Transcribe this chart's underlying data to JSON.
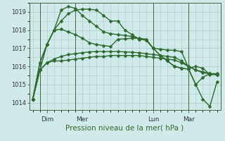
{
  "background_color": "#d0eaea",
  "grid_color": "#aacccc",
  "line_color": "#2d6a2d",
  "marker": "D",
  "markersize": 2.5,
  "linewidth": 1.0,
  "title": "Pression niveau de la mer( hPa )",
  "title_fontsize": 7.5,
  "title_color": "#2d6a2d",
  "ylim": [
    1013.6,
    1019.5
  ],
  "yticks": [
    1014,
    1015,
    1016,
    1017,
    1018,
    1019
  ],
  "ytick_fontsize": 6.0,
  "xtick_fontsize": 6.5,
  "day_labels": [
    "Dim",
    "Mer",
    "Lun",
    "Mar"
  ],
  "day_positions": [
    2,
    7,
    17,
    22
  ],
  "vline_positions": [
    1,
    6,
    17,
    22
  ],
  "x_max": 27,
  "series": [
    [
      1014.2,
      1015.8,
      1016.2,
      1016.3,
      1016.3,
      1016.35,
      1016.4,
      1016.45,
      1016.5,
      1016.55,
      1016.55,
      1016.6,
      1016.6,
      1016.6,
      1016.6,
      1016.6,
      1016.55,
      1016.5,
      1016.45,
      1016.4,
      1016.35,
      1016.2,
      1016.0,
      1015.8,
      1015.7,
      1015.6,
      1015.55
    ],
    [
      1014.2,
      1015.8,
      1016.2,
      1016.4,
      1016.55,
      1016.65,
      1016.7,
      1016.75,
      1016.8,
      1016.82,
      1016.82,
      1016.82,
      1016.82,
      1016.8,
      1016.78,
      1016.75,
      1016.7,
      1016.65,
      1016.6,
      1016.55,
      1016.5,
      1016.3,
      1016.0,
      1015.8,
      1015.65,
      1015.6,
      1015.55
    ],
    [
      1014.2,
      1015.8,
      1017.2,
      1018.0,
      1018.05,
      1017.9,
      1017.75,
      1017.55,
      1017.3,
      1017.2,
      1017.15,
      1017.1,
      1017.5,
      1017.52,
      1017.55,
      1017.55,
      1017.5,
      1017.0,
      1016.95,
      1016.9,
      1016.88,
      1016.82,
      1015.9,
      1016.0,
      1015.9,
      1015.55,
      1015.55
    ],
    [
      1014.2,
      1016.2,
      1017.2,
      1018.0,
      1018.5,
      1018.9,
      1019.1,
      1019.15,
      1019.15,
      1019.1,
      1018.8,
      1018.5,
      1018.5,
      1018.0,
      1017.75,
      1017.5,
      1017.45,
      1017.0,
      1016.6,
      1016.3,
      1016.0,
      1015.9,
      1015.85,
      1015.0,
      1014.2,
      1013.8,
      1015.15
    ],
    [
      1014.2,
      1016.2,
      1017.2,
      1018.0,
      1019.1,
      1019.3,
      1019.2,
      1018.8,
      1018.5,
      1018.2,
      1017.9,
      1017.8,
      1017.75,
      1017.7,
      1017.65,
      1017.5,
      1017.45,
      1017.0,
      1016.6,
      1016.3,
      1016.0,
      1015.9,
      1015.85,
      1015.0,
      1015.4,
      1015.6,
      1015.6
    ]
  ]
}
